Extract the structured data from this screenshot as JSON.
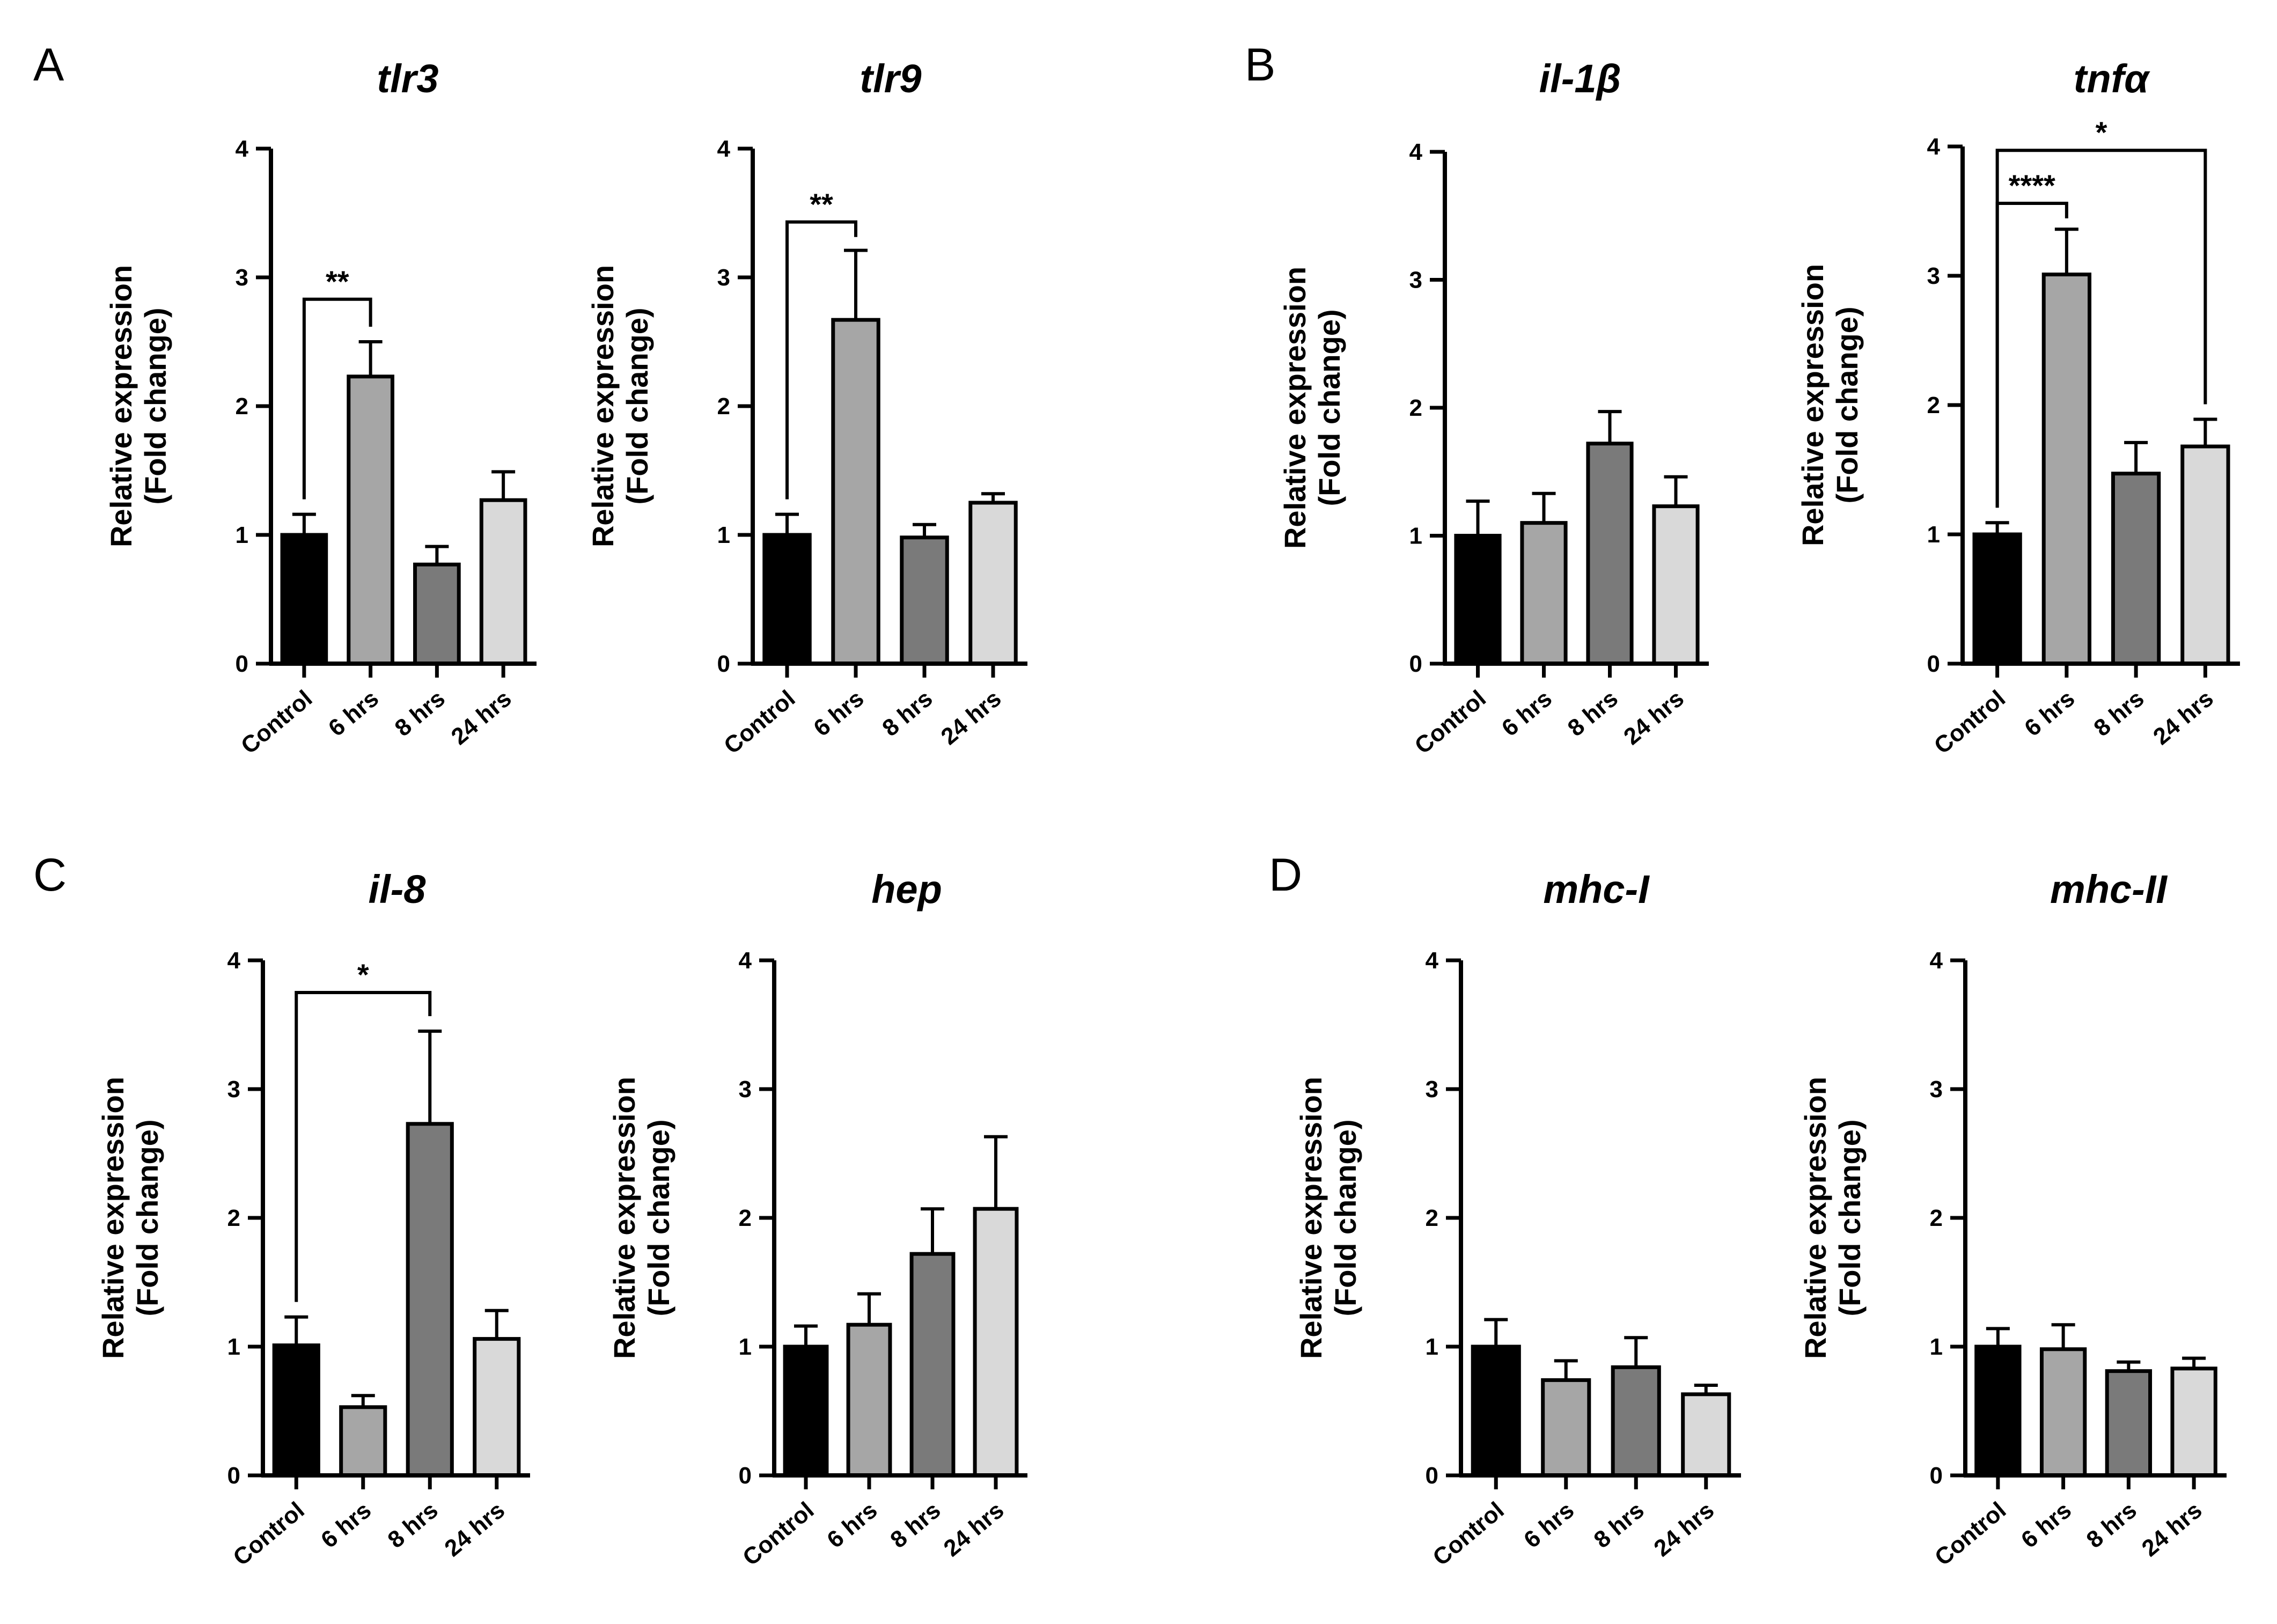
{
  "panel_letters": [
    "A",
    "B",
    "C",
    "D"
  ],
  "colors": {
    "control": "#000000",
    "6 hrs": "#a6a6a6",
    "8 hrs": "#7a7a7a",
    "24 hrs": "#d9d9d9",
    "axis": "#000000"
  },
  "chart_data": [
    {
      "type": "bar",
      "panel": "A",
      "title": "tlr3",
      "ylabel_line1": "Relative expression",
      "ylabel_line2": "(Fold change)",
      "categories": [
        "Control",
        "6 hrs",
        "8 hrs",
        "24 hrs"
      ],
      "values": [
        1.0,
        2.23,
        0.77,
        1.27
      ],
      "errors": [
        0.16,
        0.27,
        0.14,
        0.22
      ],
      "ylim": [
        0,
        4
      ],
      "yticks": [
        0,
        1,
        2,
        3,
        4
      ],
      "significance": [
        {
          "from": 0,
          "to": 1,
          "label": "**",
          "y": 2.83
        }
      ]
    },
    {
      "type": "bar",
      "panel": "A",
      "title": "tlr9",
      "ylabel_line1": "Relative expression",
      "ylabel_line2": "(Fold change)",
      "categories": [
        "Control",
        "6 hrs",
        "8 hrs",
        "24 hrs"
      ],
      "values": [
        1.0,
        2.67,
        0.98,
        1.25
      ],
      "errors": [
        0.16,
        0.54,
        0.1,
        0.07
      ],
      "ylim": [
        0,
        4
      ],
      "yticks": [
        0,
        1,
        2,
        3,
        4
      ],
      "significance": [
        {
          "from": 0,
          "to": 1,
          "label": "**",
          "y": 3.43
        }
      ]
    },
    {
      "type": "bar",
      "panel": "B",
      "title": "il-1β",
      "ylabel_line1": "Relative expression",
      "ylabel_line2": "(Fold change)",
      "categories": [
        "Control",
        "6 hrs",
        "8 hrs",
        "24 hrs"
      ],
      "values": [
        1.0,
        1.1,
        1.72,
        1.23
      ],
      "errors": [
        0.27,
        0.23,
        0.25,
        0.23
      ],
      "ylim": [
        0,
        4
      ],
      "yticks": [
        0,
        1,
        2,
        3,
        4
      ],
      "significance": []
    },
    {
      "type": "bar",
      "panel": "B",
      "title": "tnfα",
      "ylabel_line1": "Relative expression",
      "ylabel_line2": "(Fold change)",
      "categories": [
        "Control",
        "6 hrs",
        "8 hrs",
        "24 hrs"
      ],
      "values": [
        1.0,
        3.01,
        1.47,
        1.68
      ],
      "errors": [
        0.09,
        0.35,
        0.24,
        0.21
      ],
      "ylim": [
        0,
        4
      ],
      "yticks": [
        0,
        1,
        2,
        3,
        4
      ],
      "significance": [
        {
          "from": 0,
          "to": 1,
          "label": "****",
          "y": 3.56
        },
        {
          "from": 0,
          "to": 3,
          "label": "*",
          "y": 3.97
        }
      ]
    },
    {
      "type": "bar",
      "panel": "C",
      "title": "il-8",
      "ylabel_line1": "Relative expression",
      "ylabel_line2": "(Fold change)",
      "categories": [
        "Control",
        "6 hrs",
        "8 hrs",
        "24 hrs"
      ],
      "values": [
        1.01,
        0.53,
        2.73,
        1.06
      ],
      "errors": [
        0.22,
        0.09,
        0.72,
        0.22
      ],
      "ylim": [
        0,
        4
      ],
      "yticks": [
        0,
        1,
        2,
        3,
        4
      ],
      "significance": [
        {
          "from": 0,
          "to": 2,
          "label": "*",
          "y": 3.75
        }
      ]
    },
    {
      "type": "bar",
      "panel": "C",
      "title": "hep",
      "ylabel_line1": "Relative expression",
      "ylabel_line2": "(Fold change)",
      "categories": [
        "Control",
        "6 hrs",
        "8 hrs",
        "24 hrs"
      ],
      "values": [
        1.0,
        1.17,
        1.72,
        2.07
      ],
      "errors": [
        0.16,
        0.24,
        0.35,
        0.56
      ],
      "ylim": [
        0,
        4
      ],
      "yticks": [
        0,
        1,
        2,
        3,
        4
      ],
      "significance": []
    },
    {
      "type": "bar",
      "panel": "D",
      "title": "mhc-I",
      "ylabel_line1": "Relative expression",
      "ylabel_line2": "(Fold change)",
      "categories": [
        "Control",
        "6 hrs",
        "8 hrs",
        "24 hrs"
      ],
      "values": [
        1.0,
        0.74,
        0.84,
        0.63
      ],
      "errors": [
        0.21,
        0.15,
        0.23,
        0.07
      ],
      "ylim": [
        0,
        4
      ],
      "yticks": [
        0,
        1,
        2,
        3,
        4
      ],
      "significance": []
    },
    {
      "type": "bar",
      "panel": "D",
      "title": "mhc-II",
      "ylabel_line1": "Relative expression",
      "ylabel_line2": "(Fold change)",
      "categories": [
        "Control",
        "6 hrs",
        "8 hrs",
        "24 hrs"
      ],
      "values": [
        1.0,
        0.98,
        0.81,
        0.83
      ],
      "errors": [
        0.14,
        0.19,
        0.07,
        0.08
      ],
      "ylim": [
        0,
        4
      ],
      "yticks": [
        0,
        1,
        2,
        3,
        4
      ],
      "significance": []
    }
  ]
}
